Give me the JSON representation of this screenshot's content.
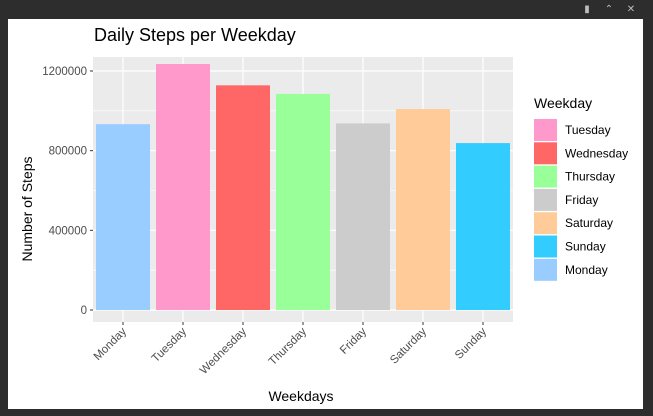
{
  "window": {
    "controls": [
      {
        "name": "export-icon",
        "glyph": "▮"
      },
      {
        "name": "collapse-icon",
        "glyph": "⌃"
      },
      {
        "name": "close-icon",
        "glyph": "✕"
      }
    ]
  },
  "chart_data": {
    "type": "bar",
    "title": "Daily Steps per Weekday",
    "xlabel": "Weekdays",
    "ylabel": "Number of Steps",
    "categories": [
      "Monday",
      "Tuesday",
      "Wednesday",
      "Thursday",
      "Friday",
      "Saturday",
      "Sunday"
    ],
    "values": [
      933000,
      1235000,
      1128000,
      1085000,
      937000,
      1009000,
      838000
    ],
    "colors": [
      "#99CCFF",
      "#FF99CC",
      "#FF6666",
      "#99FF99",
      "#CCCCCC",
      "#FFCC99",
      "#33CCFF"
    ],
    "ylim": [
      0,
      1300000
    ],
    "yticks": [
      0,
      400000,
      800000,
      1200000
    ],
    "ytick_labels": [
      "0",
      "400000",
      "800000",
      "1200000"
    ],
    "grid": true,
    "panel_background": "#EBEBEB",
    "legend": {
      "title": "Weekday",
      "position": "right",
      "entries": [
        {
          "label": "Tuesday",
          "color": "#FF99CC"
        },
        {
          "label": "Wednesday",
          "color": "#FF6666"
        },
        {
          "label": "Thursday",
          "color": "#99FF99"
        },
        {
          "label": "Friday",
          "color": "#CCCCCC"
        },
        {
          "label": "Saturday",
          "color": "#FFCC99"
        },
        {
          "label": "Sunday",
          "color": "#33CCFF"
        },
        {
          "label": "Monday",
          "color": "#99CCFF"
        }
      ]
    }
  }
}
